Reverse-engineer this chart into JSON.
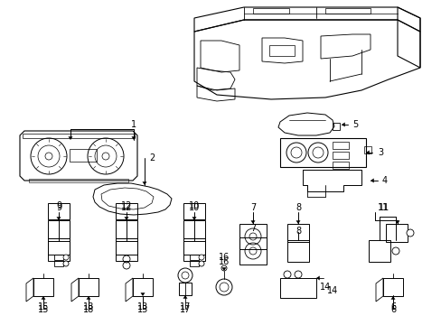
{
  "background_color": "#ffffff",
  "line_color": "#000000",
  "fig_w": 4.89,
  "fig_h": 3.6,
  "dpi": 100
}
